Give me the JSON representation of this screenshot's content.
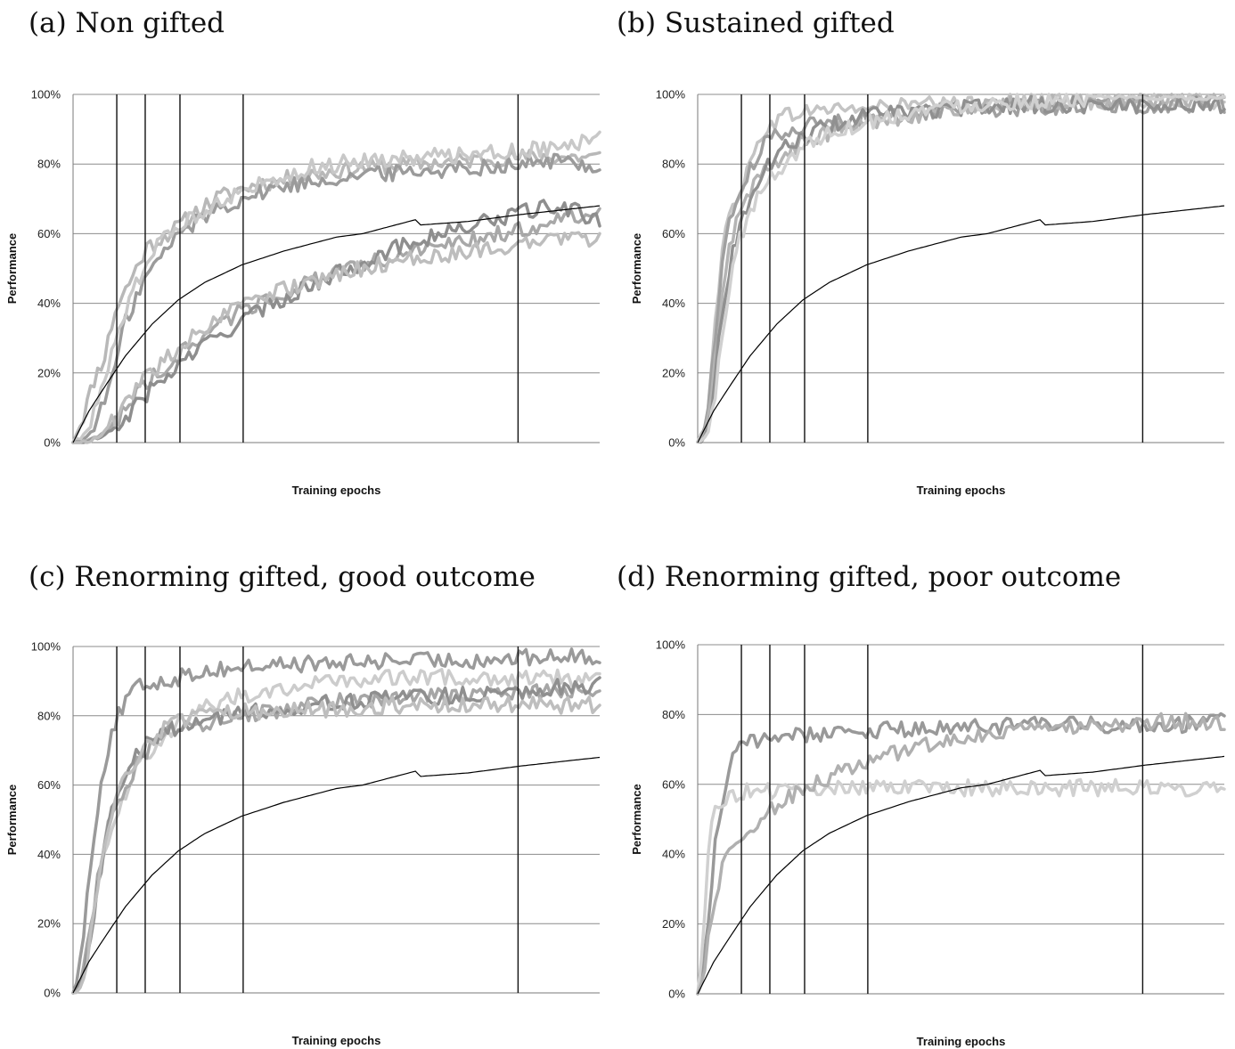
{
  "chart_data": [
    {
      "id": "a",
      "type": "line",
      "title": "(a) Non gifted",
      "xlabel": "Training epochs",
      "ylabel": "Performance",
      "ylim": [
        0,
        100
      ],
      "yticks": [
        "0%",
        "20%",
        "40%",
        "60%",
        "80%",
        "100%"
      ],
      "grid": true,
      "legend": "none",
      "milestones_pct": [
        8.3,
        13.7,
        20.3,
        32.3,
        84.5
      ],
      "colors": [
        "#b8b8b8",
        "#9b9b9b",
        "#c8c8c8",
        "#a8a8a8",
        "#8e8e8e",
        "#bdbdbd"
      ],
      "series": [
        {
          "x": [
            0,
            2,
            4,
            6,
            8,
            10,
            12,
            14,
            17,
            20,
            23,
            27,
            32,
            38,
            45,
            55,
            65,
            75,
            85,
            92,
            100
          ],
          "values": [
            0,
            8,
            18,
            25,
            38,
            44,
            50,
            56,
            59,
            62,
            66,
            70,
            73,
            75,
            77,
            79,
            80,
            81,
            82,
            82,
            82
          ]
        },
        {
          "x": [
            0,
            2,
            4,
            6,
            8,
            10,
            12,
            14,
            17,
            20,
            23,
            27,
            32,
            38,
            45,
            55,
            65,
            75,
            85,
            92,
            100
          ],
          "values": [
            0,
            1,
            4,
            12,
            22,
            35,
            42,
            48,
            54,
            60,
            63,
            67,
            70,
            73,
            75,
            77,
            78,
            79,
            80,
            81,
            79
          ]
        },
        {
          "x": [
            0,
            2,
            4,
            6,
            8,
            10,
            12,
            14,
            17,
            20,
            23,
            27,
            32,
            38,
            45,
            55,
            65,
            75,
            85,
            92,
            100
          ],
          "values": [
            0,
            2,
            8,
            18,
            28,
            38,
            46,
            52,
            58,
            62,
            65,
            69,
            72,
            76,
            79,
            81,
            82,
            83,
            84,
            85,
            87
          ]
        },
        {
          "x": [
            0,
            2,
            4,
            6,
            8,
            10,
            12,
            14,
            17,
            20,
            23,
            27,
            32,
            38,
            45,
            55,
            65,
            75,
            85,
            92,
            100
          ],
          "values": [
            0,
            0,
            1,
            3,
            6,
            10,
            14,
            17,
            21,
            25,
            29,
            33,
            38,
            42,
            46,
            51,
            55,
            58,
            61,
            64,
            67
          ]
        },
        {
          "x": [
            0,
            2,
            4,
            6,
            8,
            10,
            12,
            14,
            17,
            20,
            23,
            27,
            32,
            38,
            45,
            55,
            65,
            75,
            85,
            92,
            100
          ],
          "values": [
            0,
            0,
            1,
            2,
            4,
            7,
            11,
            14,
            18,
            22,
            26,
            30,
            35,
            40,
            45,
            52,
            58,
            62,
            66,
            68,
            64
          ]
        },
        {
          "x": [
            0,
            2,
            4,
            6,
            8,
            10,
            12,
            14,
            17,
            20,
            23,
            27,
            32,
            38,
            45,
            55,
            65,
            75,
            85,
            92,
            100
          ],
          "values": [
            0,
            0,
            1,
            3,
            7,
            11,
            15,
            19,
            23,
            27,
            31,
            35,
            39,
            43,
            46,
            50,
            53,
            55,
            57,
            58,
            59
          ]
        }
      ],
      "reference": {
        "x": [
          0,
          3,
          6,
          10,
          15,
          20,
          25,
          32,
          40,
          50,
          55,
          60,
          65,
          66,
          75,
          85,
          100
        ],
        "values": [
          0,
          9,
          16,
          25,
          34,
          41,
          46,
          51,
          55,
          59,
          60,
          62,
          64,
          62.5,
          63.5,
          65.5,
          68
        ]
      }
    },
    {
      "id": "b",
      "type": "line",
      "title": "(b) Sustained gifted",
      "xlabel": "Training epochs",
      "ylabel": "Performance",
      "ylim": [
        0,
        100
      ],
      "yticks": [
        "0%",
        "20%",
        "40%",
        "60%",
        "80%",
        "100%"
      ],
      "grid": true,
      "legend": "none",
      "milestones_pct": [
        8.3,
        13.7,
        20.3,
        32.3,
        84.5
      ],
      "colors": [
        "#c4c4c4",
        "#a0a0a0",
        "#b4b4b4",
        "#909090",
        "#d0d0d0"
      ],
      "series": [
        {
          "x": [
            0,
            1,
            2,
            3,
            4,
            5,
            6,
            7,
            8,
            10,
            12,
            14,
            17,
            20,
            25,
            32,
            40,
            50,
            60,
            75,
            90,
            100
          ],
          "values": [
            0,
            3,
            12,
            30,
            45,
            58,
            65,
            70,
            72,
            80,
            88,
            92,
            94,
            95,
            96,
            96,
            97,
            97,
            98,
            98,
            98,
            98
          ]
        },
        {
          "x": [
            0,
            1,
            2,
            3,
            4,
            5,
            6,
            7,
            8,
            10,
            12,
            14,
            17,
            20,
            25,
            32,
            40,
            50,
            60,
            75,
            90,
            100
          ],
          "values": [
            0,
            2,
            10,
            25,
            42,
            55,
            63,
            68,
            72,
            78,
            84,
            88,
            90,
            91,
            92,
            93,
            94,
            96,
            96,
            97,
            97,
            97
          ]
        },
        {
          "x": [
            0,
            1,
            2,
            3,
            4,
            5,
            6,
            7,
            8,
            10,
            12,
            14,
            17,
            20,
            25,
            32,
            40,
            50,
            60,
            75,
            90,
            100
          ],
          "values": [
            0,
            1,
            6,
            18,
            33,
            46,
            55,
            62,
            66,
            72,
            77,
            80,
            83,
            86,
            89,
            92,
            94,
            96,
            97,
            98,
            98,
            99
          ]
        },
        {
          "x": [
            0,
            1,
            2,
            3,
            4,
            5,
            6,
            7,
            8,
            10,
            12,
            14,
            17,
            20,
            25,
            32,
            40,
            50,
            60,
            75,
            90,
            100
          ],
          "values": [
            0,
            1,
            5,
            14,
            28,
            40,
            50,
            57,
            62,
            70,
            76,
            81,
            85,
            88,
            91,
            94,
            95,
            96,
            97,
            97,
            97,
            97
          ]
        },
        {
          "x": [
            0,
            1,
            2,
            3,
            4,
            5,
            6,
            7,
            8,
            10,
            12,
            14,
            17,
            20,
            25,
            32,
            40,
            50,
            60,
            75,
            90,
            100
          ],
          "values": [
            0,
            1,
            3,
            10,
            22,
            35,
            45,
            53,
            59,
            66,
            72,
            76,
            81,
            85,
            89,
            92,
            95,
            97,
            98,
            99,
            99,
            99
          ]
        }
      ],
      "reference": {
        "x": [
          0,
          3,
          6,
          10,
          15,
          20,
          25,
          32,
          40,
          50,
          55,
          60,
          65,
          66,
          75,
          85,
          100
        ],
        "values": [
          0,
          9,
          16,
          25,
          34,
          41,
          46,
          51,
          55,
          59,
          60,
          62,
          64,
          62.5,
          63.5,
          65.5,
          68
        ]
      }
    },
    {
      "id": "c",
      "type": "line",
      "title": "(c) Renorming gifted, good outcome",
      "xlabel": "Training epochs",
      "ylabel": "Performance",
      "ylim": [
        0,
        100
      ],
      "yticks": [
        "0%",
        "20%",
        "40%",
        "60%",
        "80%",
        "100%"
      ],
      "grid": true,
      "legend": "none",
      "milestones_pct": [
        8.3,
        13.7,
        20.3,
        32.3,
        84.5
      ],
      "colors": [
        "#9a9a9a",
        "#cccccc",
        "#a6a6a6",
        "#8f8f8f",
        "#bebebe"
      ],
      "series": [
        {
          "x": [
            0,
            1,
            2,
            3,
            4,
            5,
            6,
            7,
            8,
            10,
            12,
            14,
            17,
            20,
            25,
            32,
            40,
            50,
            60,
            75,
            90,
            100
          ],
          "values": [
            0,
            4,
            18,
            33,
            46,
            58,
            66,
            72,
            78,
            84,
            88,
            89,
            90,
            91,
            93,
            94,
            95,
            95,
            96,
            96,
            97,
            97
          ]
        },
        {
          "x": [
            0,
            1,
            2,
            3,
            4,
            5,
            6,
            7,
            8,
            10,
            12,
            14,
            17,
            20,
            25,
            32,
            40,
            50,
            60,
            75,
            90,
            100
          ],
          "values": [
            0,
            1,
            5,
            14,
            25,
            35,
            42,
            47,
            51,
            58,
            64,
            69,
            74,
            78,
            82,
            86,
            88,
            90,
            91,
            91,
            91,
            91
          ]
        },
        {
          "x": [
            0,
            1,
            2,
            3,
            4,
            5,
            6,
            7,
            8,
            10,
            12,
            14,
            17,
            20,
            25,
            32,
            40,
            50,
            60,
            75,
            90,
            100
          ],
          "values": [
            0,
            1,
            6,
            15,
            26,
            36,
            44,
            50,
            54,
            60,
            66,
            70,
            74,
            76,
            78,
            80,
            82,
            84,
            85,
            86,
            87,
            88
          ]
        },
        {
          "x": [
            0,
            1,
            2,
            3,
            4,
            5,
            6,
            7,
            8,
            10,
            12,
            14,
            17,
            20,
            25,
            32,
            40,
            50,
            60,
            75,
            90,
            100
          ],
          "values": [
            0,
            1,
            5,
            13,
            24,
            34,
            43,
            50,
            55,
            62,
            68,
            72,
            75,
            77,
            79,
            81,
            82,
            84,
            85,
            86,
            88,
            89
          ]
        },
        {
          "x": [
            0,
            1,
            2,
            3,
            4,
            5,
            6,
            7,
            8,
            10,
            12,
            14,
            17,
            20,
            25,
            32,
            40,
            50,
            60,
            75,
            90,
            100
          ],
          "values": [
            0,
            1,
            4,
            12,
            22,
            33,
            42,
            50,
            55,
            62,
            68,
            72,
            76,
            78,
            80,
            81,
            82,
            82,
            83,
            83,
            83,
            83
          ]
        }
      ],
      "reference": {
        "x": [
          0,
          3,
          6,
          10,
          15,
          20,
          25,
          32,
          40,
          50,
          55,
          60,
          65,
          66,
          75,
          85,
          100
        ],
        "values": [
          0,
          9,
          16,
          25,
          34,
          41,
          46,
          51,
          55,
          59,
          60,
          62,
          64,
          62.5,
          63.5,
          65.5,
          68
        ]
      }
    },
    {
      "id": "d",
      "type": "line",
      "title": "(d) Renorming gifted, poor outcome",
      "xlabel": "Training epochs",
      "ylabel": "Performance",
      "ylim": [
        0,
        100
      ],
      "yticks": [
        "0%",
        "20%",
        "40%",
        "60%",
        "80%",
        "100%"
      ],
      "grid": true,
      "legend": "none",
      "milestones_pct": [
        8.3,
        13.7,
        20.3,
        32.3,
        84.5
      ],
      "colors": [
        "#999999",
        "#d0d0d0",
        "#b0b0b0"
      ],
      "series": [
        {
          "x": [
            0,
            1,
            2,
            3,
            4,
            5,
            6,
            7,
            8,
            10,
            12,
            14,
            17,
            20,
            25,
            32,
            40,
            50,
            60,
            75,
            90,
            100
          ],
          "values": [
            0,
            8,
            22,
            38,
            50,
            58,
            64,
            68,
            70,
            72,
            73,
            74,
            74,
            74,
            75,
            75,
            76,
            76,
            77,
            77,
            77,
            78
          ]
        },
        {
          "x": [
            0,
            1,
            2,
            3,
            4,
            5,
            6,
            7,
            8,
            10,
            12,
            14,
            17,
            20,
            25,
            32,
            40,
            50,
            60,
            75,
            90,
            100
          ],
          "values": [
            0,
            12,
            40,
            52,
            55,
            56,
            57,
            57,
            58,
            58,
            58,
            58,
            58,
            58,
            59,
            59,
            59,
            59,
            59,
            59,
            59,
            59
          ]
        },
        {
          "x": [
            0,
            1,
            2,
            3,
            4,
            5,
            6,
            7,
            8,
            10,
            12,
            14,
            17,
            20,
            25,
            32,
            40,
            50,
            60,
            75,
            90,
            100
          ],
          "values": [
            0,
            5,
            15,
            25,
            32,
            37,
            40,
            43,
            45,
            47,
            50,
            53,
            56,
            59,
            62,
            66,
            70,
            73,
            75,
            77,
            78,
            78
          ]
        }
      ],
      "reference": {
        "x": [
          0,
          3,
          6,
          10,
          15,
          20,
          25,
          32,
          40,
          50,
          55,
          60,
          65,
          66,
          75,
          85,
          100
        ],
        "values": [
          0,
          9,
          16,
          25,
          34,
          41,
          46,
          51,
          55,
          59,
          60,
          62,
          64,
          62.5,
          63.5,
          65.5,
          68
        ]
      }
    }
  ]
}
